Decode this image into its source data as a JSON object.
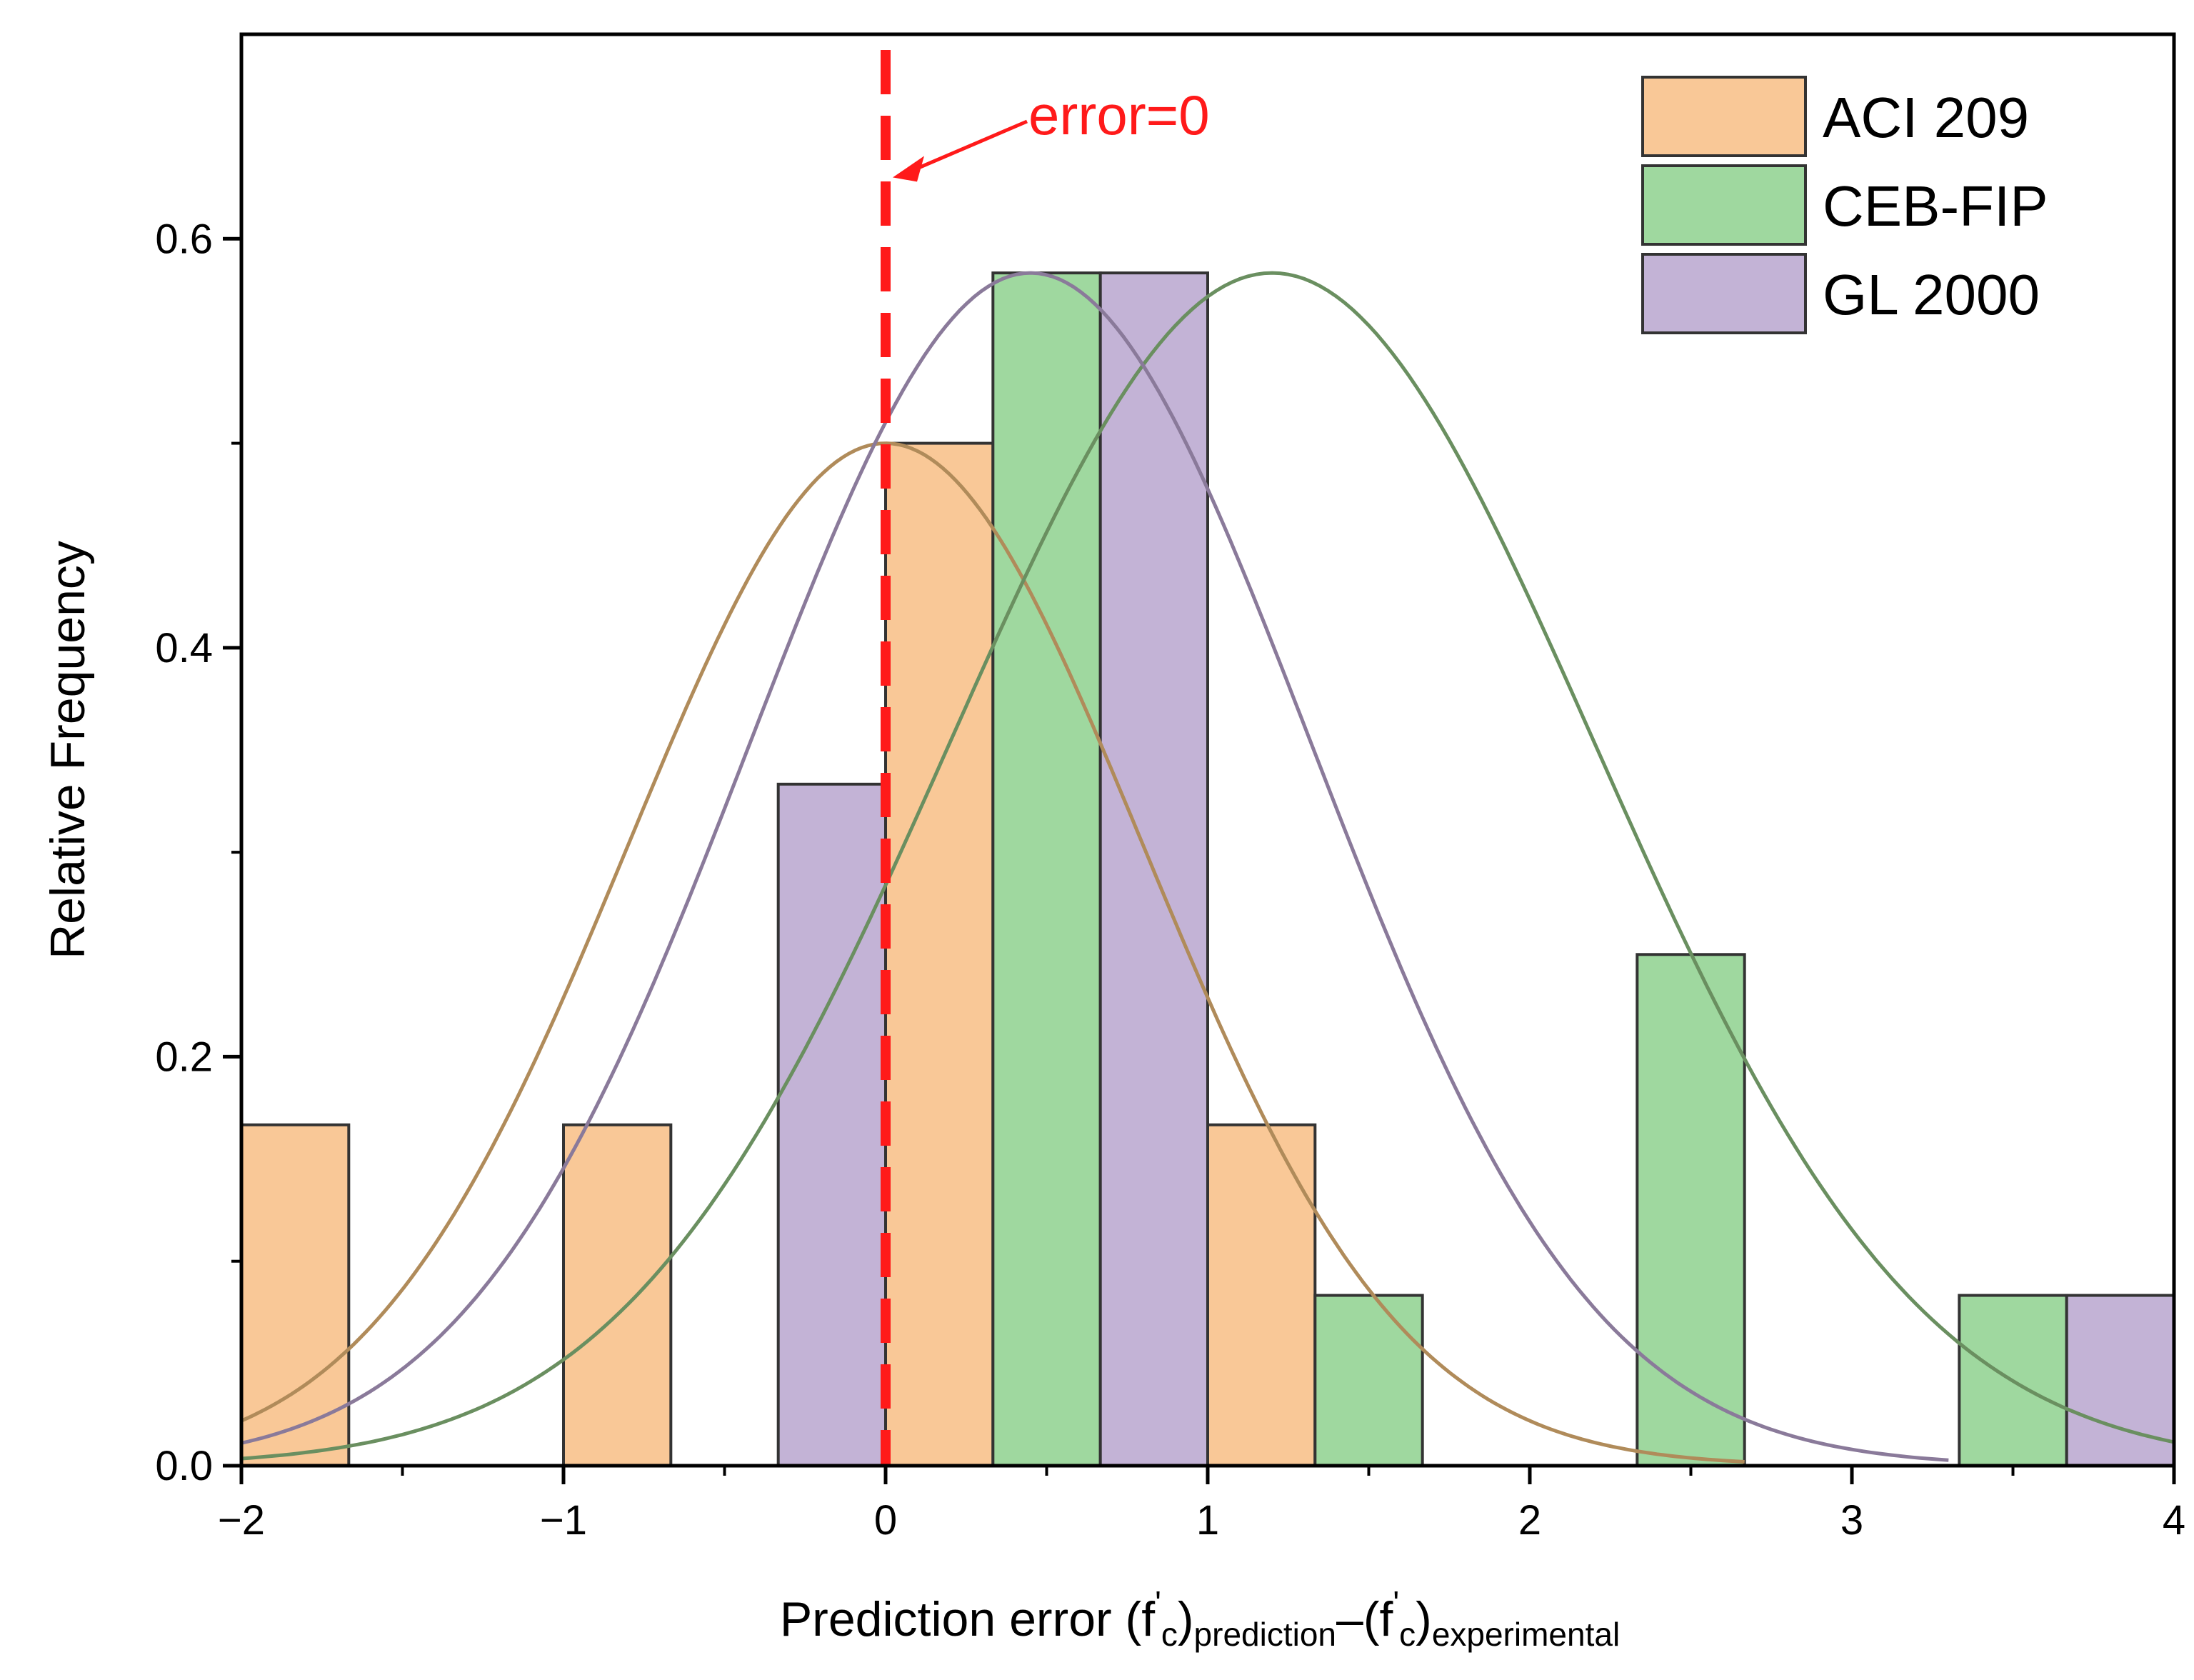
{
  "chart_data": {
    "type": "bar",
    "xlabel": {
      "main": "Prediction error (f",
      "sub1": "c",
      "mid1": ")",
      "sub2": "prediction",
      "mid2": "–(f",
      "sub3": "c",
      "mid3": ")",
      "sub4": "experimental",
      "prime": "'"
    },
    "ylabel": "Relative Frequency",
    "xlim": [
      -2,
      4
    ],
    "ylim": [
      0,
      0.7
    ],
    "xticks": [
      -2,
      -1,
      0,
      1,
      2,
      3,
      4
    ],
    "xtick_labels": [
      "−2",
      "−1",
      "0",
      "1",
      "2",
      "3",
      "4"
    ],
    "yticks": [
      0,
      0.2,
      0.4,
      0.6
    ],
    "ytick_labels": [
      "0.0",
      "0.2",
      "0.4",
      "0.6"
    ],
    "grid": false,
    "legend_position": "top-right",
    "bin_width": 0.3333,
    "series": [
      {
        "name": "ACI 209",
        "color": "#f9c897",
        "bins": [
          {
            "x0": -2.0,
            "x1": -1.6667,
            "y": 0.1667
          },
          {
            "x0": -1.0,
            "x1": -0.6667,
            "y": 0.1667
          },
          {
            "x0": 0.0,
            "x1": 0.3333,
            "y": 0.5
          },
          {
            "x0": 1.0,
            "x1": 1.3333,
            "y": 0.1667
          }
        ],
        "curve": {
          "mean": 0.0,
          "sd": 0.8,
          "peak": 0.5,
          "x_start": -2.0,
          "x_end": 2.6667,
          "color": "#b08b5a"
        }
      },
      {
        "name": "CEB-FIP",
        "color": "#9fd89f",
        "bins": [
          {
            "x0": 0.3333,
            "x1": 0.6667,
            "y": 0.5833
          },
          {
            "x0": 1.3333,
            "x1": 1.6667,
            "y": 0.0833
          },
          {
            "x0": 2.3333,
            "x1": 2.6667,
            "y": 0.25
          },
          {
            "x0": 3.3333,
            "x1": 3.6667,
            "y": 0.0833
          }
        ],
        "curve": {
          "mean": 1.2,
          "sd": 1.0,
          "peak": 0.5833,
          "x_start": -2.0,
          "x_end": 4.0,
          "color": "#6a8f60"
        }
      },
      {
        "name": "GL 2000",
        "color": "#c3b3d6",
        "bins": [
          {
            "x0": -0.3333,
            "x1": 0.0,
            "y": 0.3333
          },
          {
            "x0": 0.6667,
            "x1": 1.0,
            "y": 0.5833
          },
          {
            "x0": 3.6667,
            "x1": 4.0,
            "y": 0.0833
          }
        ],
        "curve": {
          "mean": 0.45,
          "sd": 0.87,
          "peak": 0.5833,
          "x_start": -2.0,
          "x_end": 3.3,
          "color": "#8a7a9a"
        }
      }
    ],
    "annotation": {
      "text": "error=0",
      "x_line": 0.0,
      "arrow_tip": {
        "x": 0.0,
        "y": 0.63
      },
      "color": "#ff1a1a"
    }
  }
}
